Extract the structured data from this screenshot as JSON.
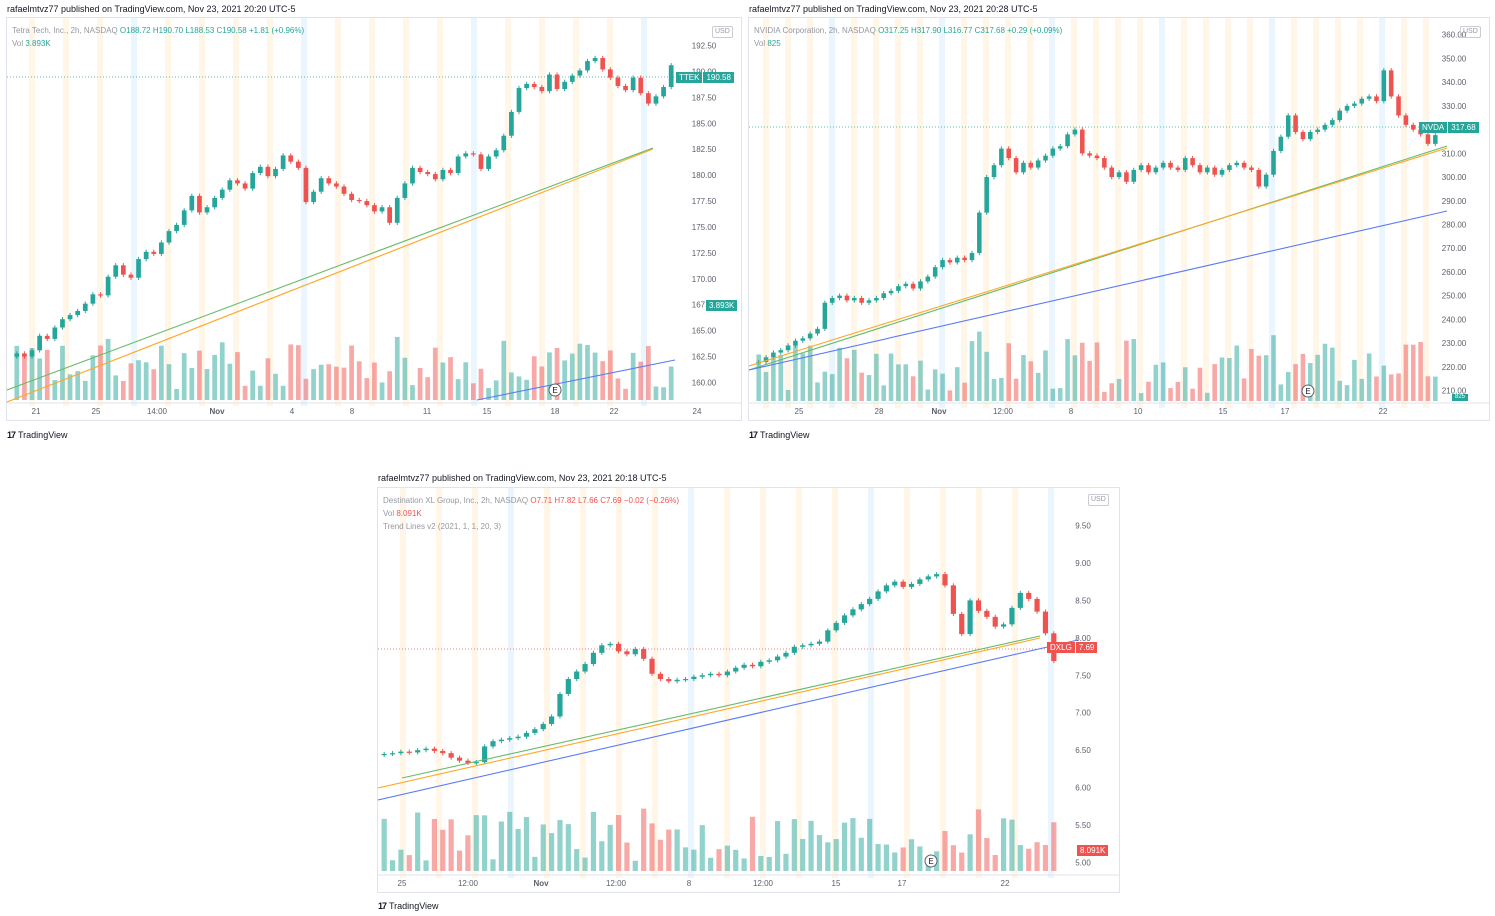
{
  "panels": [
    {
      "id": "ttek",
      "published": "rafaelmtvz77 published on TradingView.com, Nov 23, 2021 20:20 UTC-5",
      "symbol_line": "Tetra Tech, Inc., 2h, NASDAQ",
      "ohlc": {
        "o": "O188.72",
        "h": "H190.70",
        "l": "L188.53",
        "c": "C190.58",
        "chg": "+1.81 (+0.96%)"
      },
      "vol_label": "Vol",
      "vol_value": "3.893K",
      "currency": "USD",
      "ticker": "TTEK",
      "last_price": "190.58",
      "vol_tag": "3.893K",
      "brand": "TradingView",
      "colors": {
        "up": "#26a69a",
        "down": "#ef5350"
      },
      "chart_data": {
        "type": "candlestick",
        "y_ticks": [
          "192.50",
          "190.00",
          "187.50",
          "185.00",
          "182.50",
          "180.00",
          "177.50",
          "175.00",
          "172.50",
          "170.00",
          "167.50",
          "165.00",
          "162.50",
          "160.00"
        ],
        "ylim": [
          158.5,
          194
        ],
        "x_ticks": [
          "21",
          "25",
          "14:00",
          "Nov",
          "4",
          "8",
          "11",
          "15",
          "18",
          "22",
          "24"
        ],
        "closes": [
          162.8,
          162.5,
          163.1,
          164.5,
          164.2,
          165.3,
          166.1,
          166.5,
          166.9,
          167.6,
          168.5,
          168.4,
          170.2,
          171.3,
          170.4,
          170.1,
          171.9,
          172.6,
          172.4,
          173.5,
          174.6,
          175.2,
          176.6,
          178.0,
          176.4,
          176.9,
          177.8,
          178.6,
          179.5,
          179.2,
          178.7,
          180.2,
          180.8,
          179.9,
          180.6,
          181.9,
          181.3,
          180.7,
          177.4,
          178.4,
          179.7,
          179.2,
          178.9,
          178.2,
          177.6,
          177.5,
          177.1,
          176.5,
          176.9,
          175.4,
          177.8,
          179.2,
          180.7,
          180.3,
          180.1,
          179.6,
          180.5,
          180.2,
          181.8,
          182.1,
          182.0,
          180.6,
          181.8,
          182.4,
          183.8,
          186.1,
          188.4,
          188.8,
          188.5,
          188.1,
          189.7,
          188.3,
          189.0,
          189.6,
          190.1,
          191.0,
          191.3,
          190.2,
          189.4,
          188.6,
          188.2,
          189.4,
          187.9,
          186.9,
          187.6,
          188.5,
          190.6
        ],
        "volume_label": "Vol 3.893K",
        "earnings_marker": "E",
        "trend_lines": [
          "green",
          "orange",
          "blue"
        ]
      }
    },
    {
      "id": "nvda",
      "published": "rafaelmtvz77 published on TradingView.com, Nov 23, 2021 20:28 UTC-5",
      "symbol_line": "NVIDIA Corporation, 2h, NASDAQ",
      "ohlc": {
        "o": "O317.25",
        "h": "H317.90",
        "l": "L316.77",
        "c": "C317.68",
        "chg": "+0.29 (+0.09%)"
      },
      "vol_label": "Vol",
      "vol_value": "825",
      "currency": "USD",
      "ticker": "NVDA",
      "last_price": "317.68",
      "vol_tag": "825",
      "brand": "TradingView",
      "colors": {
        "up": "#26a69a",
        "down": "#ef5350"
      },
      "chart_data": {
        "type": "candlestick",
        "y_ticks": [
          "360.00",
          "350.00",
          "340.00",
          "330.00",
          "320.00",
          "310.00",
          "300.00",
          "290.00",
          "280.00",
          "270.00",
          "260.00",
          "250.00",
          "240.00",
          "230.00",
          "220.00",
          "210.00"
        ],
        "ylim": [
          206,
          362
        ],
        "x_ticks": [
          "25",
          "28",
          "Nov",
          "12:00",
          "8",
          "10",
          "15",
          "17",
          "22"
        ],
        "closes": [
          222,
          224,
          226,
          227,
          229,
          231,
          232,
          234,
          236,
          247,
          249,
          250,
          248,
          249,
          247,
          248,
          249,
          251,
          252,
          254,
          255,
          253,
          256,
          258,
          262,
          265,
          264,
          266,
          265,
          268,
          285,
          300,
          305,
          312,
          308,
          302,
          306,
          304,
          307,
          309,
          312,
          313,
          318,
          320,
          310,
          309,
          308,
          304,
          300,
          302,
          298,
          303,
          305,
          302,
          304,
          306,
          304,
          303,
          308,
          305,
          302,
          304,
          301,
          303,
          305,
          306,
          304,
          303,
          296,
          301,
          311,
          317,
          326,
          319,
          316,
          319,
          320,
          322,
          324,
          328,
          330,
          331,
          333,
          334,
          332,
          345,
          334,
          326,
          322,
          320,
          318,
          314,
          317.68
        ],
        "earnings_marker": "E",
        "trend_lines": [
          "green",
          "orange",
          "blue"
        ]
      }
    },
    {
      "id": "dxlg",
      "published": "rafaelmtvz77 published on TradingView.com, Nov 23, 2021 20:18 UTC-5",
      "symbol_line": "Destination XL Group, Inc., 2h, NASDAQ",
      "ohlc": {
        "o": "O7.71",
        "h": "H7.82",
        "l": "L7.66",
        "c": "C7.69",
        "chg": "−0.02 (−0.26%)"
      },
      "vol_label": "Vol",
      "vol_value": "8.091K",
      "indicator": "Trend Lines v2 (2021, 1, 1, 20, 3)",
      "currency": "USD",
      "ticker": "DXLG",
      "last_price": "7.69",
      "vol_tag": "8.091K",
      "brand": "TradingView",
      "colors": {
        "up": "#26a69a",
        "down": "#ef5350"
      },
      "chart_data": {
        "type": "candlestick",
        "y_ticks": [
          "9.50",
          "9.00",
          "8.50",
          "8.00",
          "7.50",
          "7.00",
          "6.50",
          "6.00",
          "5.50",
          "5.00"
        ],
        "ylim": [
          4.9,
          9.6
        ],
        "x_ticks": [
          "25",
          "12:00",
          "Nov",
          "12:00",
          "8",
          "12:00",
          "15",
          "17",
          "22"
        ],
        "closes": [
          6.45,
          6.46,
          6.48,
          6.47,
          6.5,
          6.52,
          6.49,
          6.46,
          6.4,
          6.36,
          6.33,
          6.34,
          6.55,
          6.62,
          6.64,
          6.66,
          6.68,
          6.73,
          6.78,
          6.85,
          6.95,
          7.25,
          7.45,
          7.55,
          7.65,
          7.8,
          7.9,
          7.92,
          7.82,
          7.78,
          7.85,
          7.72,
          7.52,
          7.45,
          7.42,
          7.44,
          7.45,
          7.48,
          7.5,
          7.52,
          7.5,
          7.55,
          7.6,
          7.64,
          7.62,
          7.68,
          7.7,
          7.75,
          7.8,
          7.88,
          7.9,
          7.92,
          7.95,
          8.1,
          8.2,
          8.3,
          8.38,
          8.45,
          8.52,
          8.62,
          8.7,
          8.75,
          8.68,
          8.72,
          8.78,
          8.82,
          8.85,
          8.7,
          8.32,
          8.05,
          8.5,
          8.36,
          8.28,
          8.15,
          8.18,
          8.4,
          8.6,
          8.52,
          8.35,
          8.06,
          7.69
        ],
        "earnings_marker": "E",
        "trend_lines": [
          "green",
          "orange",
          "blue"
        ]
      }
    }
  ]
}
